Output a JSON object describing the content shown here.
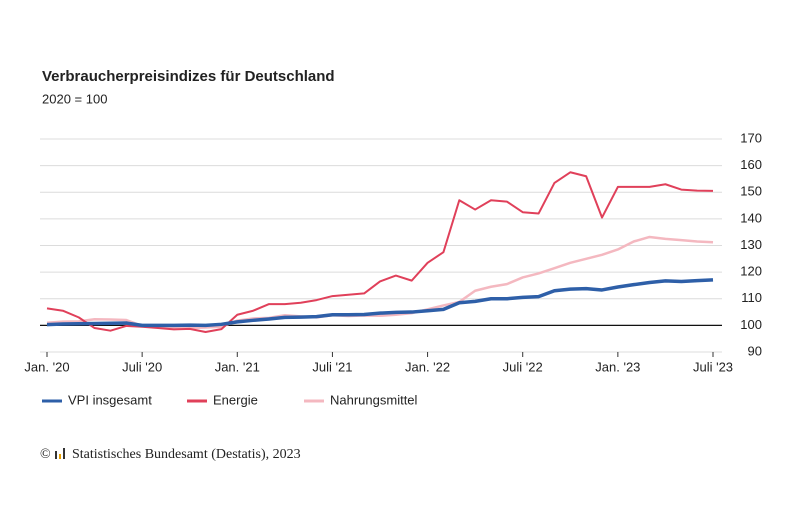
{
  "chart_data": {
    "type": "line",
    "title": "Verbraucherpreisindizes für Deutschland",
    "subtitle": "2020 = 100",
    "categories": [
      "Jan. '20",
      null,
      null,
      null,
      null,
      null,
      "Juli '20",
      null,
      null,
      null,
      null,
      null,
      "Jan. '21",
      null,
      null,
      null,
      null,
      null,
      "Juli '21",
      null,
      null,
      null,
      null,
      null,
      "Jan. '22",
      null,
      null,
      null,
      null,
      null,
      "Juli '22",
      null,
      null,
      null,
      null,
      null,
      "Jan. '23",
      null,
      null,
      null,
      null,
      null,
      "Juli '23"
    ],
    "series": [
      {
        "name": "VPI insgesamt",
        "color": "#2e5fa8",
        "width": 3.5,
        "values": [
          100.3,
          100.5,
          100.6,
          100.7,
          100.8,
          100.9,
          100.0,
          100.0,
          100.0,
          100.1,
          100.0,
          100.4,
          101.3,
          101.9,
          102.4,
          103.0,
          103.1,
          103.3,
          104.0,
          104.0,
          104.1,
          104.6,
          104.9,
          105.0,
          105.5,
          106.0,
          108.5,
          109.0,
          110.0,
          110.0,
          110.5,
          110.8,
          113.0,
          113.6,
          113.8,
          113.3,
          114.4,
          115.3,
          116.1,
          116.7,
          116.5,
          116.8,
          117.1
        ]
      },
      {
        "name": "Energie",
        "color": "#e0405a",
        "width": 2,
        "values": [
          106.4,
          105.5,
          103.0,
          99.0,
          98.0,
          99.8,
          99.5,
          99.0,
          98.5,
          98.7,
          97.5,
          98.6,
          104.0,
          105.5,
          108.0,
          108.0,
          108.5,
          109.5,
          111.0,
          111.5,
          112.0,
          116.5,
          118.7,
          116.8,
          123.5,
          127.5,
          147.0,
          143.5,
          147.0,
          146.5,
          142.5,
          142.0,
          153.5,
          157.5,
          156.0,
          140.5,
          152.0,
          152.0,
          152.0,
          153.0,
          151.0,
          150.6,
          150.5
        ]
      },
      {
        "name": "Nahrungsmittel",
        "color": "#f4b8c0",
        "width": 2.5,
        "values": [
          101.0,
          101.4,
          101.5,
          102.3,
          102.2,
          102.0,
          99.8,
          99.5,
          99.2,
          99.0,
          99.2,
          99.5,
          101.8,
          102.6,
          102.8,
          103.8,
          103.4,
          103.0,
          103.8,
          103.5,
          103.7,
          103.6,
          104.0,
          104.6,
          106.0,
          107.5,
          108.8,
          113.0,
          114.5,
          115.5,
          118.0,
          119.5,
          121.5,
          123.5,
          125.0,
          126.5,
          128.5,
          131.5,
          133.2,
          132.5,
          132.0,
          131.5,
          131.2
        ]
      }
    ],
    "ylim": [
      90,
      170
    ],
    "yticks": [
      90,
      100,
      110,
      120,
      130,
      140,
      150,
      160,
      170
    ],
    "grid": true,
    "reference_line": 100,
    "copyright": "©",
    "source": "Statistisches Bundesamt (Destatis), 2023"
  }
}
